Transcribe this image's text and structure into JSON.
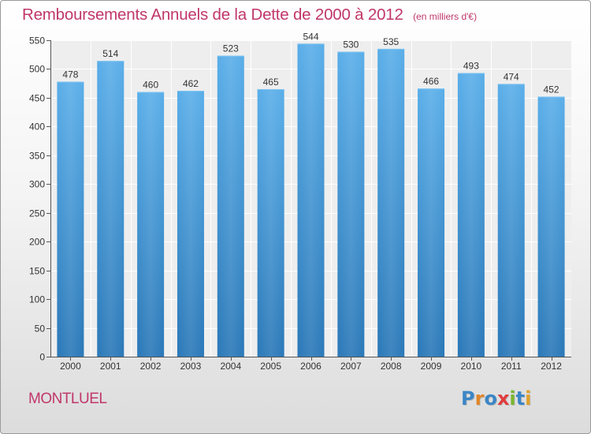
{
  "header": {
    "title": "Remboursements Annuels de la Dette de 2000 à 2012",
    "subtitle": "(en milliers d'€)"
  },
  "footer": {
    "commune": "MONTLUEL",
    "logo_text": "Proxiti"
  },
  "colors": {
    "title": "#c0376a",
    "bar_top": "#5aaee9",
    "bar_bottom": "#2a78b8",
    "logo_letters": [
      "#3b86c6",
      "#e0862a",
      "#3b86c6",
      "#e03c3c",
      "#7ab52f",
      "#3b86c6",
      "#e0a22a"
    ]
  },
  "chart_data": {
    "type": "bar",
    "categories": [
      "2000",
      "2001",
      "2002",
      "2003",
      "2004",
      "2005",
      "2006",
      "2007",
      "2008",
      "2009",
      "2010",
      "2011",
      "2012"
    ],
    "values": [
      478,
      514,
      460,
      462,
      523,
      465,
      544,
      530,
      535,
      466,
      493,
      474,
      452
    ],
    "title": "Remboursements Annuels de la Dette de 2000 à 2012",
    "subtitle": "(en milliers d'€)",
    "ylim": [
      0,
      550
    ],
    "yticks": [
      0,
      50,
      100,
      150,
      200,
      250,
      300,
      350,
      400,
      450,
      500,
      550
    ],
    "grid": true,
    "data_labels": true
  }
}
